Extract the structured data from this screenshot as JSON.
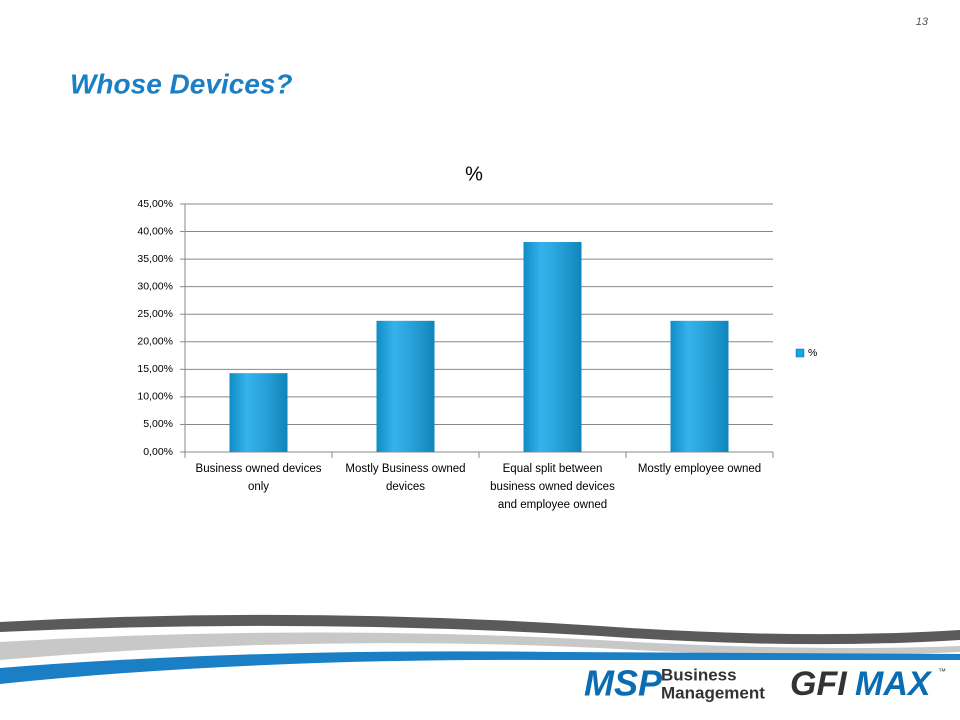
{
  "slide": {
    "page_number": "13",
    "title": "Whose Devices?",
    "logo": {
      "msp": "MSP",
      "business": "Business",
      "management": "Management",
      "gfi": "GFI",
      "max": "MAX",
      "tm": "™"
    }
  },
  "chart_data": {
    "type": "bar",
    "title": "%",
    "categories": [
      "Business owned devices only",
      "Mostly Business owned devices",
      "Equal split between business owned devices and employee owned",
      "Mostly employee owned"
    ],
    "series": [
      {
        "name": "%",
        "color": "#12a5e8",
        "values": [
          14.3,
          23.8,
          38.1,
          23.8
        ]
      }
    ],
    "ylim": [
      0,
      45
    ],
    "yticks": [
      {
        "value": 0,
        "label": "0,00%"
      },
      {
        "value": 5,
        "label": "5,00%"
      },
      {
        "value": 10,
        "label": "10,00%"
      },
      {
        "value": 15,
        "label": "15,00%"
      },
      {
        "value": 20,
        "label": "20,00%"
      },
      {
        "value": 25,
        "label": "25,00%"
      },
      {
        "value": 30,
        "label": "30,00%"
      },
      {
        "value": 35,
        "label": "35,00%"
      },
      {
        "value": 40,
        "label": "40,00%"
      },
      {
        "value": 45,
        "label": "45,00%"
      }
    ],
    "grid": true,
    "legend": "right"
  }
}
